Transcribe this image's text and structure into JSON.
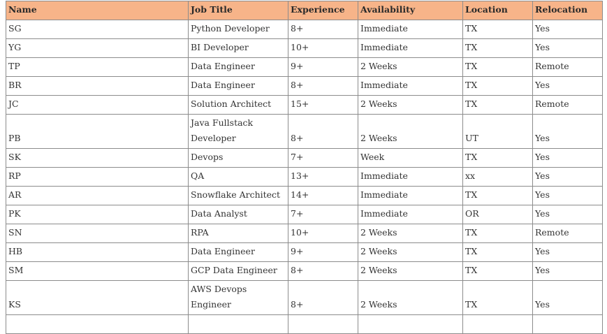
{
  "table": {
    "columns": [
      "Name",
      "Job Title",
      "Experience",
      "Availability",
      "Location",
      "Relocation"
    ],
    "rows": [
      [
        "SG",
        "Python Developer",
        "8+",
        "Immediate",
        "TX",
        "Yes"
      ],
      [
        "YG",
        "BI Developer",
        "10+",
        "Immediate",
        "TX",
        "Yes"
      ],
      [
        "TP",
        "Data Engineer",
        "9+",
        "2 Weeks",
        "TX",
        "Remote"
      ],
      [
        "BR",
        "Data Engineer",
        "8+",
        "Immediate",
        "TX",
        "Yes"
      ],
      [
        "JC",
        "Solution Architect",
        "15+",
        "2 Weeks",
        "TX",
        "Remote"
      ],
      [
        "PB",
        "Java Fullstack Developer",
        "8+",
        "2 Weeks",
        "UT",
        "Yes"
      ],
      [
        "SK",
        "Devops",
        "7+",
        "Week",
        "TX",
        "Yes"
      ],
      [
        "RP",
        "QA",
        "13+",
        "Immediate",
        "xx",
        "Yes"
      ],
      [
        "AR",
        "Snowflake Architect",
        "14+",
        "Immediate",
        "TX",
        "Yes"
      ],
      [
        "PK",
        "Data Analyst",
        "7+",
        "Immediate",
        "OR",
        "Yes"
      ],
      [
        "SN",
        "RPA",
        "10+",
        "2 Weeks",
        "TX",
        "Remote"
      ],
      [
        "HB",
        "Data Engineer",
        "9+",
        "2 Weeks",
        "TX",
        "Yes"
      ],
      [
        "SM",
        "GCP Data Engineer",
        "8+",
        "2 Weeks",
        "TX",
        "Yes"
      ],
      [
        "KS",
        "AWS Devops Engineer",
        "8+",
        "2 Weeks",
        "TX",
        "Yes"
      ]
    ]
  }
}
